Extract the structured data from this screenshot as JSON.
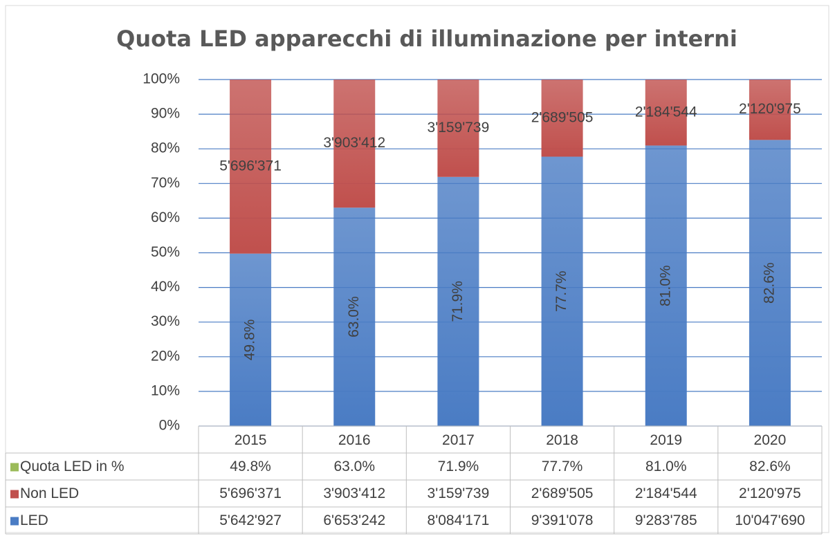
{
  "chart_data": {
    "type": "bar",
    "stacking": "percent",
    "title": "Quota LED apparecchi di illuminazione per interni",
    "categories": [
      "2015",
      "2016",
      "2017",
      "2018",
      "2019",
      "2020"
    ],
    "series": [
      {
        "name": "LED",
        "color": "#4a7cc4",
        "values": [
          5642927,
          6653242,
          8084171,
          9391078,
          9283785,
          10047690
        ],
        "value_labels": [
          "5'642'927",
          "6'653'242",
          "8'084'171",
          "9'391'078",
          "9'283'785",
          "10'047'690"
        ]
      },
      {
        "name": "Non LED",
        "color": "#c0504d",
        "values": [
          5696371,
          3903412,
          3159739,
          2689505,
          2184544,
          2120975
        ],
        "value_labels": [
          "5'696'371",
          "3'903'412",
          "3'159'739",
          "2'689'505",
          "2'184'544",
          "2'120'975"
        ]
      },
      {
        "name": "Quota LED in %",
        "color": "#9bbb59",
        "label_only": true,
        "values": [
          49.8,
          63.0,
          71.9,
          77.7,
          81.0,
          82.6
        ],
        "value_labels": [
          "49.8%",
          "63.0%",
          "71.9%",
          "77.7%",
          "81.0%",
          "82.6%"
        ]
      }
    ],
    "ylim": [
      0,
      100
    ],
    "yticks": [
      {
        "value": 0,
        "label": "0%"
      },
      {
        "value": 10,
        "label": "10%"
      },
      {
        "value": 20,
        "label": "20%"
      },
      {
        "value": 30,
        "label": "30%"
      },
      {
        "value": 40,
        "label": "40%"
      },
      {
        "value": 50,
        "label": "50%"
      },
      {
        "value": 60,
        "label": "60%"
      },
      {
        "value": 70,
        "label": "70%"
      },
      {
        "value": 80,
        "label": "80%"
      },
      {
        "value": 90,
        "label": "90%"
      },
      {
        "value": 100,
        "label": "100%"
      }
    ],
    "grid": true,
    "data_table": true
  }
}
